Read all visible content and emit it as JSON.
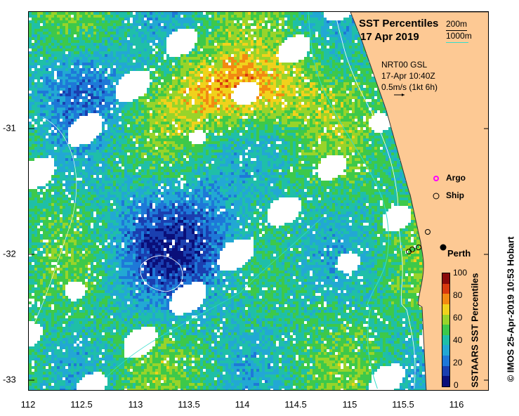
{
  "title": {
    "line1": "SST Percentiles",
    "line2": "17 Apr 2019"
  },
  "depth_legend": [
    {
      "label": "200m",
      "color": "#000000"
    },
    {
      "label": "1000m",
      "color": "#33ddcc"
    }
  ],
  "current_info": {
    "line1": "NRT00 GSL",
    "line2": "17-Apr 10:40Z",
    "line3": "0.5m/s (1kt 6h)"
  },
  "markers": {
    "argo": {
      "label": "Argo",
      "color": "#ff00ff"
    },
    "ship": {
      "label": "Ship"
    },
    "city": {
      "label": "Perth"
    }
  },
  "colorbar": {
    "title": "SSTAARS SST Percentiles",
    "ticks": [
      "0",
      "20",
      "40",
      "60",
      "80",
      "100"
    ],
    "colors": [
      "#0a0f7a",
      "#1a3fb0",
      "#1e78d8",
      "#22a8d4",
      "#1fbfa8",
      "#3dc94a",
      "#98d42a",
      "#f0d21c",
      "#f28a12",
      "#d83a0e",
      "#8a0a0a"
    ]
  },
  "axes": {
    "x_ticks": [
      "112",
      "112.5",
      "113",
      "113.5",
      "114",
      "114.5",
      "115",
      "115.5",
      "116"
    ],
    "y_ticks": [
      "-31",
      "-32",
      "-33"
    ]
  },
  "credit": "© IMOS 25-Apr-2019 10:53 Hobart",
  "colors": {
    "land": "#fdc994",
    "no_data": "#ffffff"
  }
}
